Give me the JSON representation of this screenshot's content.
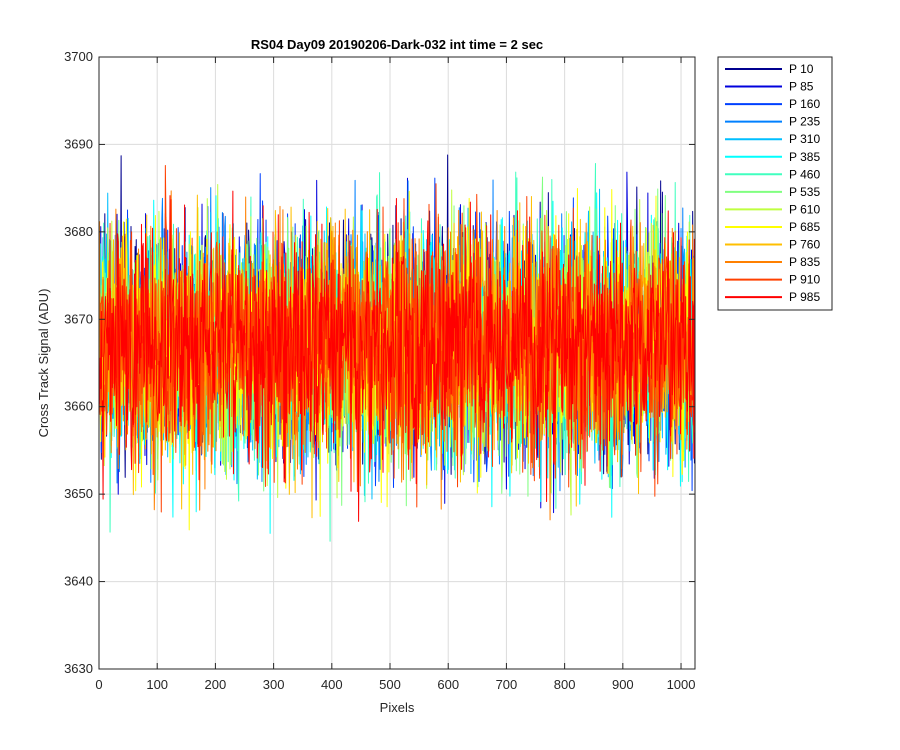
{
  "chart_data": {
    "type": "line",
    "title": "RS04 Day09 20190206-Dark-032 int time = 2 sec",
    "xlabel": "Pixels",
    "ylabel": "Cross Track Signal (ADU)",
    "xlim": [
      0,
      1024
    ],
    "ylim": [
      3630,
      3700
    ],
    "xticks": [
      0,
      100,
      200,
      300,
      400,
      500,
      600,
      700,
      800,
      900,
      1000
    ],
    "yticks": [
      3630,
      3640,
      3650,
      3660,
      3670,
      3680,
      3690,
      3700
    ],
    "grid": true,
    "legend_position": "outside-top-right",
    "noise_model": {
      "n_points": 1024,
      "mean": 3667,
      "std_approx": 6.5,
      "note_visible_range": [
        3632,
        3700
      ]
    },
    "series": [
      {
        "name": "P 10",
        "color": "#00008f",
        "seed": 10
      },
      {
        "name": "P 85",
        "color": "#0000dd",
        "seed": 85
      },
      {
        "name": "P 160",
        "color": "#0040ff",
        "seed": 160
      },
      {
        "name": "P 235",
        "color": "#0080ff",
        "seed": 235
      },
      {
        "name": "P 310",
        "color": "#00bfff",
        "seed": 310
      },
      {
        "name": "P 385",
        "color": "#00ffff",
        "seed": 385
      },
      {
        "name": "P 460",
        "color": "#40ffbf",
        "seed": 460
      },
      {
        "name": "P 535",
        "color": "#80ff80",
        "seed": 535
      },
      {
        "name": "P 610",
        "color": "#bfff40",
        "seed": 610
      },
      {
        "name": "P 685",
        "color": "#ffff00",
        "seed": 685
      },
      {
        "name": "P 760",
        "color": "#ffbf00",
        "seed": 760
      },
      {
        "name": "P 835",
        "color": "#ff8000",
        "seed": 835
      },
      {
        "name": "P 910",
        "color": "#ff4000",
        "seed": 910
      },
      {
        "name": "P 985",
        "color": "#ff0000",
        "seed": 985
      }
    ]
  }
}
